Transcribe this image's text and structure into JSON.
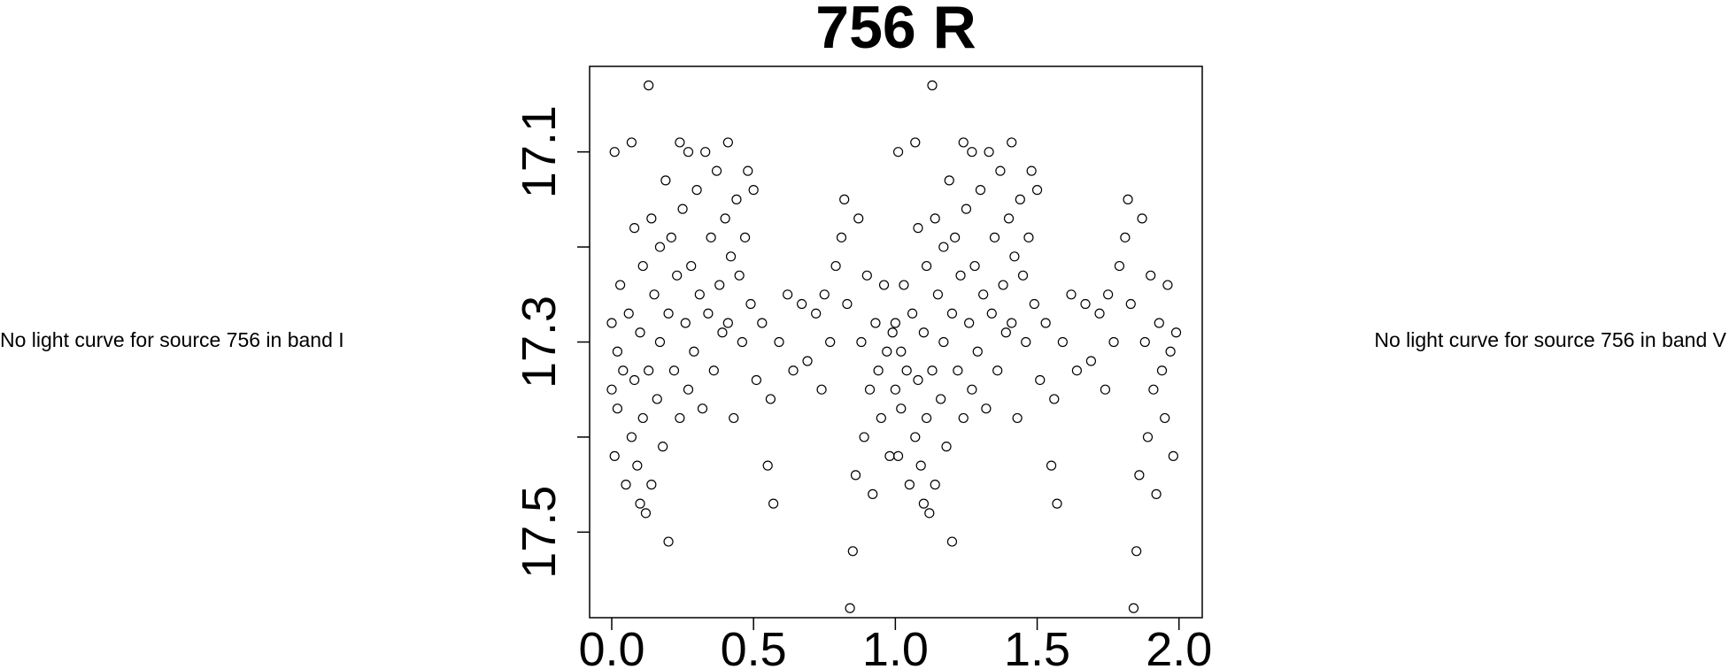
{
  "left_message": "No light curve for source 756 in band I",
  "right_message": "No light curve for source 756 in band V",
  "chart_data": {
    "type": "scatter",
    "title": "756 R",
    "color": "#000000",
    "marker": "open-circle",
    "xlim": [
      -0.078,
      2.082
    ],
    "ylim": [
      17.01,
      17.59
    ],
    "y_inverted": true,
    "xticks": [
      {
        "value": 0,
        "label": "0.0"
      },
      0.5,
      {
        "value": 1,
        "label": "1.0"
      },
      1.5,
      {
        "value": 2,
        "label": "2.0"
      }
    ],
    "yticks": [
      17.1,
      17.3,
      17.5
    ],
    "yminor_ticks": [
      17.2,
      17.4
    ],
    "x": [
      0.0,
      0.0,
      0.01,
      0.01,
      0.02,
      0.02,
      0.03,
      0.04,
      0.05,
      0.06,
      0.07,
      0.07,
      0.08,
      0.08,
      0.09,
      0.1,
      0.1,
      0.11,
      0.11,
      0.12,
      0.13,
      0.13,
      0.14,
      0.14,
      0.15,
      0.16,
      0.17,
      0.17,
      0.18,
      0.19,
      0.2,
      0.2,
      0.21,
      0.22,
      0.23,
      0.24,
      0.24,
      0.25,
      0.26,
      0.27,
      0.27,
      0.28,
      0.29,
      0.3,
      0.31,
      0.32,
      0.33,
      0.34,
      0.35,
      0.36,
      0.37,
      0.38,
      0.39,
      0.4,
      0.41,
      0.41,
      0.42,
      0.43,
      0.44,
      0.45,
      0.46,
      0.47,
      0.48,
      0.49,
      0.5,
      0.51,
      0.53,
      0.55,
      0.56,
      0.57,
      0.59,
      0.62,
      0.64,
      0.67,
      0.69,
      0.72,
      0.74,
      0.75,
      0.77,
      0.79,
      0.81,
      0.82,
      0.83,
      0.84,
      0.85,
      0.86,
      0.87,
      0.88,
      0.89,
      0.9,
      0.91,
      0.92,
      0.93,
      0.94,
      0.95,
      0.96,
      0.97,
      0.98,
      0.99,
      1.0,
      1.0,
      1.01,
      1.01,
      1.02,
      1.02,
      1.03,
      1.04,
      1.05,
      1.06,
      1.07,
      1.07,
      1.08,
      1.08,
      1.09,
      1.1,
      1.1,
      1.11,
      1.11,
      1.12,
      1.13,
      1.13,
      1.14,
      1.14,
      1.15,
      1.16,
      1.17,
      1.17,
      1.18,
      1.19,
      1.2,
      1.2,
      1.21,
      1.22,
      1.23,
      1.24,
      1.24,
      1.25,
      1.26,
      1.27,
      1.27,
      1.28,
      1.29,
      1.3,
      1.31,
      1.32,
      1.33,
      1.34,
      1.35,
      1.36,
      1.37,
      1.38,
      1.39,
      1.4,
      1.41,
      1.41,
      1.42,
      1.43,
      1.44,
      1.45,
      1.46,
      1.47,
      1.48,
      1.49,
      1.5,
      1.51,
      1.53,
      1.55,
      1.56,
      1.57,
      1.59,
      1.62,
      1.64,
      1.67,
      1.69,
      1.72,
      1.74,
      1.75,
      1.77,
      1.79,
      1.81,
      1.82,
      1.83,
      1.84,
      1.85,
      1.86,
      1.87,
      1.88,
      1.89,
      1.9,
      1.91,
      1.92,
      1.93,
      1.94,
      1.95,
      1.96,
      1.97,
      1.98,
      1.99
    ],
    "values": [
      17.28,
      17.35,
      17.1,
      17.42,
      17.31,
      17.37,
      17.24,
      17.33,
      17.45,
      17.27,
      17.09,
      17.4,
      17.18,
      17.34,
      17.43,
      17.29,
      17.47,
      17.22,
      17.38,
      17.48,
      17.03,
      17.33,
      17.17,
      17.45,
      17.25,
      17.36,
      17.2,
      17.3,
      17.41,
      17.13,
      17.27,
      17.51,
      17.19,
      17.33,
      17.23,
      17.09,
      17.38,
      17.16,
      17.28,
      17.1,
      17.35,
      17.22,
      17.31,
      17.14,
      17.25,
      17.37,
      17.1,
      17.27,
      17.19,
      17.33,
      17.12,
      17.24,
      17.29,
      17.17,
      17.09,
      17.28,
      17.21,
      17.38,
      17.15,
      17.23,
      17.3,
      17.19,
      17.12,
      17.26,
      17.14,
      17.34,
      17.28,
      17.43,
      17.36,
      17.47,
      17.3,
      17.25,
      17.33,
      17.26,
      17.32,
      17.27,
      17.35,
      17.25,
      17.3,
      17.22,
      17.19,
      17.15,
      17.26,
      17.58,
      17.52,
      17.44,
      17.17,
      17.3,
      17.4,
      17.23,
      17.35,
      17.46,
      17.28,
      17.33,
      17.38,
      17.24,
      17.31,
      17.42,
      17.29,
      17.28,
      17.35,
      17.1,
      17.42,
      17.31,
      17.37,
      17.24,
      17.33,
      17.45,
      17.27,
      17.09,
      17.4,
      17.18,
      17.34,
      17.43,
      17.29,
      17.47,
      17.22,
      17.38,
      17.48,
      17.03,
      17.33,
      17.17,
      17.45,
      17.25,
      17.36,
      17.2,
      17.3,
      17.41,
      17.13,
      17.27,
      17.51,
      17.19,
      17.33,
      17.23,
      17.09,
      17.38,
      17.16,
      17.28,
      17.1,
      17.35,
      17.22,
      17.31,
      17.14,
      17.25,
      17.37,
      17.1,
      17.27,
      17.19,
      17.33,
      17.12,
      17.24,
      17.29,
      17.17,
      17.09,
      17.28,
      17.21,
      17.38,
      17.15,
      17.23,
      17.3,
      17.19,
      17.12,
      17.26,
      17.14,
      17.34,
      17.28,
      17.43,
      17.36,
      17.47,
      17.3,
      17.25,
      17.33,
      17.26,
      17.32,
      17.27,
      17.35,
      17.25,
      17.3,
      17.22,
      17.19,
      17.15,
      17.26,
      17.58,
      17.52,
      17.44,
      17.17,
      17.3,
      17.4,
      17.23,
      17.35,
      17.46,
      17.28,
      17.33,
      17.38,
      17.24,
      17.31,
      17.42,
      17.29
    ]
  }
}
